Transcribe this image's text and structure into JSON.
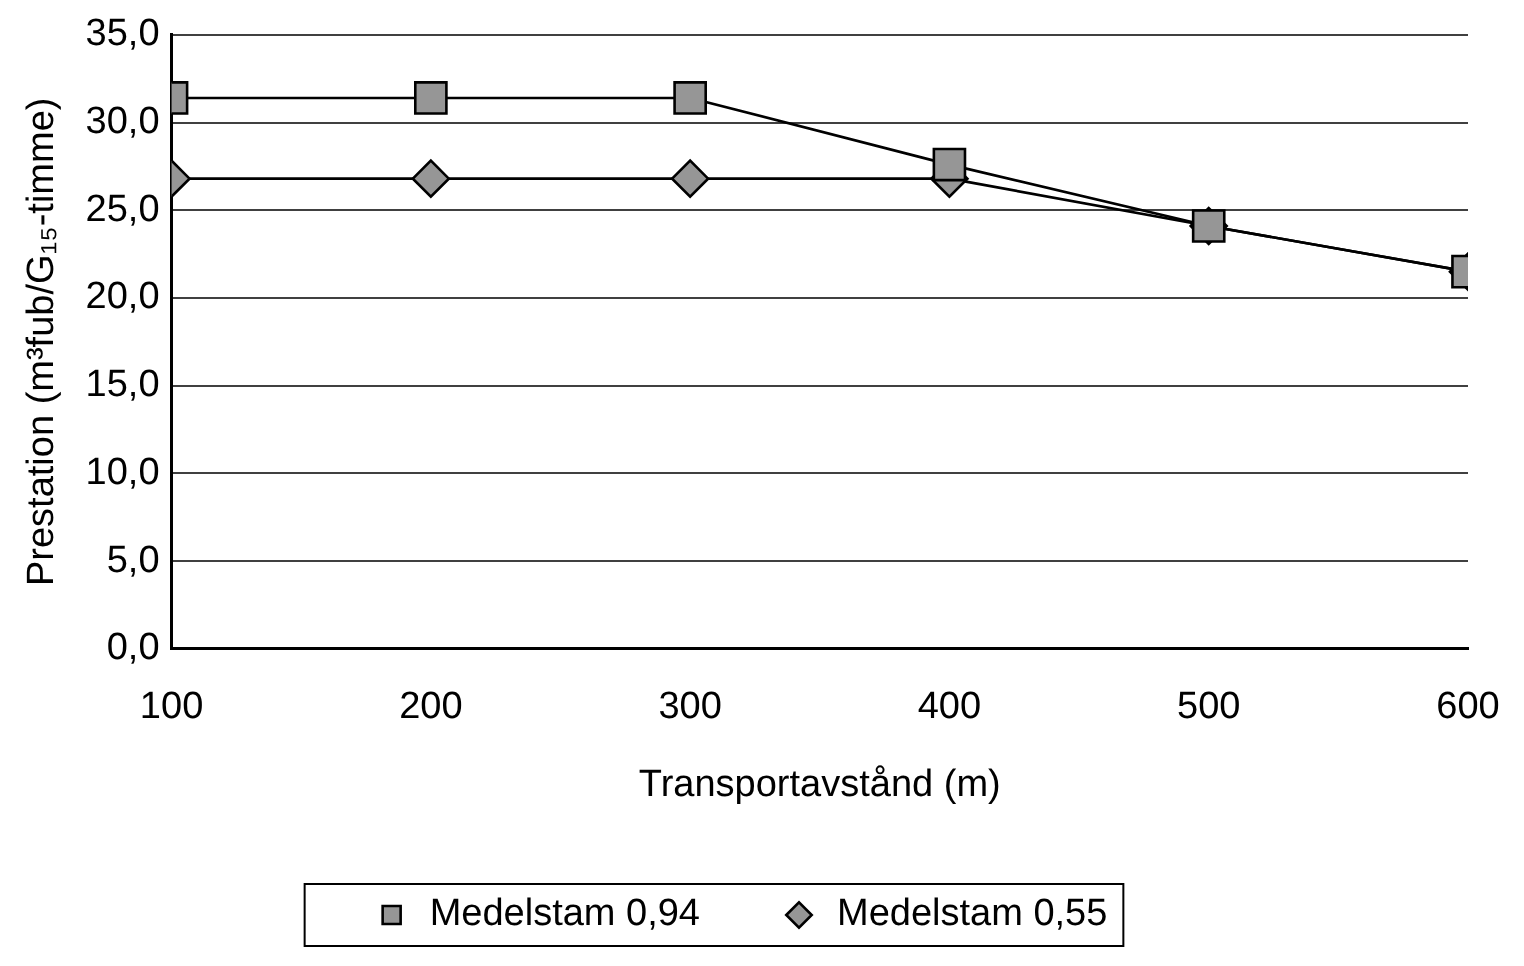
{
  "chart_data": {
    "type": "line",
    "xlabel": "Transportavstånd (m)",
    "ylabel": "Prestation (m³fub/G₁₅-timme)",
    "x": [
      100,
      200,
      300,
      400,
      500,
      600
    ],
    "xlim": [
      100,
      600
    ],
    "xticks": [
      100,
      200,
      300,
      400,
      500,
      600
    ],
    "ylim": [
      0,
      35
    ],
    "yticks": [
      {
        "value": 0,
        "label": "0,0"
      },
      {
        "value": 5,
        "label": "5,0"
      },
      {
        "value": 10,
        "label": "10,0"
      },
      {
        "value": 15,
        "label": "15,0"
      },
      {
        "value": 20,
        "label": "20,0"
      },
      {
        "value": 25,
        "label": "25,0"
      },
      {
        "value": 30,
        "label": "30,0"
      },
      {
        "value": 35,
        "label": "35,0"
      }
    ],
    "grid": "y",
    "legend": "bottom",
    "line_style": "solid",
    "series": [
      {
        "name": "Medelstam 0,94",
        "color": "#969696",
        "marker": "square",
        "values": [
          31.4,
          31.4,
          31.4,
          27.6,
          24.1,
          21.5
        ]
      },
      {
        "name": "Medelstam 0,55",
        "color": "#969696",
        "marker": "diamond",
        "values": [
          26.8,
          26.8,
          26.8,
          26.8,
          24.1,
          21.5
        ]
      }
    ]
  }
}
